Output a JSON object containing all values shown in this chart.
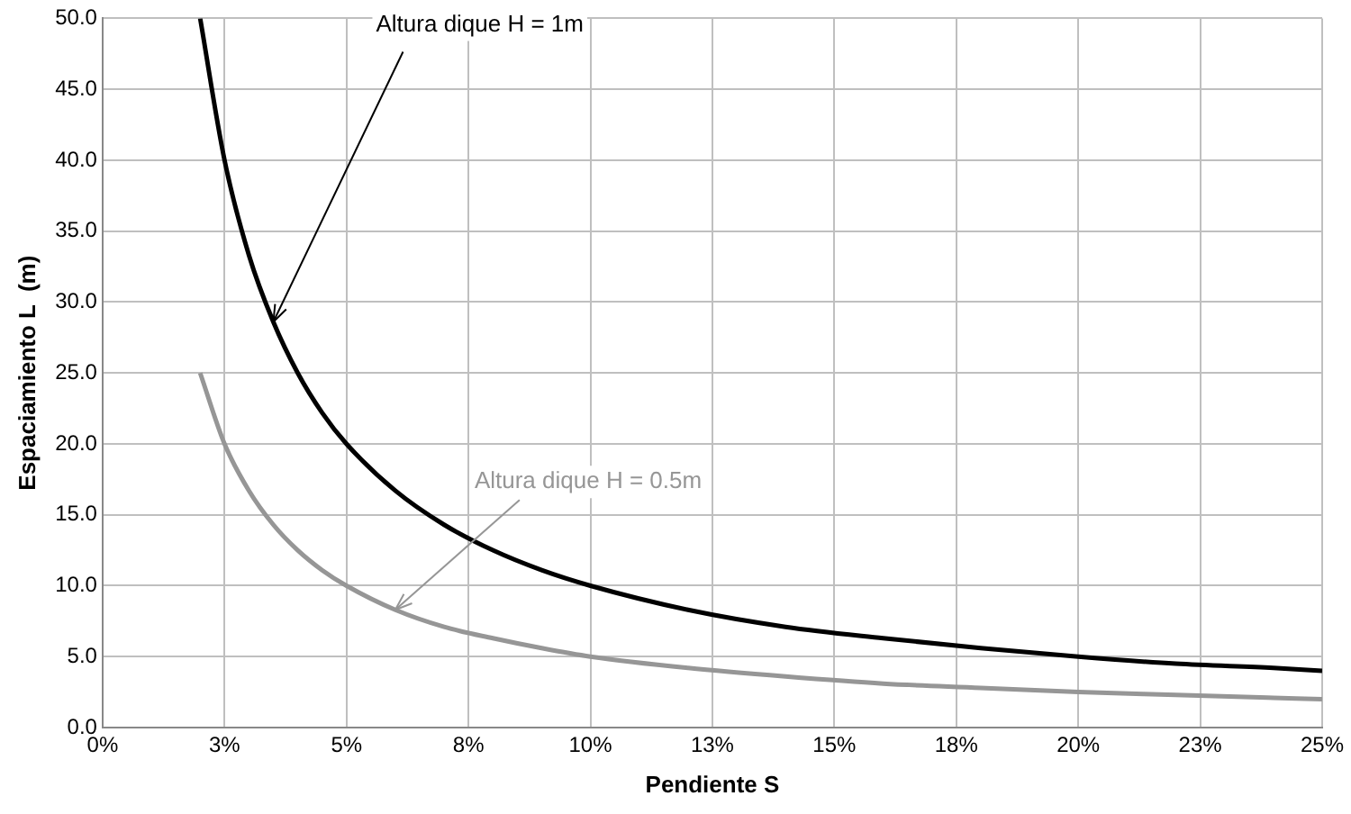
{
  "chart_data": {
    "type": "line",
    "xlabel": "Pendiente S",
    "ylabel": "Espaciamiento L  (m)",
    "xlim": [
      0,
      25
    ],
    "xticks": [
      {
        "value": 0,
        "label": "0%"
      },
      {
        "value": 2.5,
        "label": "3%"
      },
      {
        "value": 5,
        "label": "5%"
      },
      {
        "value": 7.5,
        "label": "8%"
      },
      {
        "value": 10,
        "label": "10%"
      },
      {
        "value": 12.5,
        "label": "13%"
      },
      {
        "value": 15,
        "label": "15%"
      },
      {
        "value": 17.5,
        "label": "18%"
      },
      {
        "value": 20,
        "label": "20%"
      },
      {
        "value": 22.5,
        "label": "23%"
      },
      {
        "value": 25,
        "label": "25%"
      }
    ],
    "ylim": [
      0,
      50
    ],
    "yticks": [
      {
        "value": 0,
        "label": "0.0"
      },
      {
        "value": 5,
        "label": "5.0"
      },
      {
        "value": 10,
        "label": "10.0"
      },
      {
        "value": 15,
        "label": "15.0"
      },
      {
        "value": 20,
        "label": "20.0"
      },
      {
        "value": 25,
        "label": "25.0"
      },
      {
        "value": 30,
        "label": "30.0"
      },
      {
        "value": 35,
        "label": "35.0"
      },
      {
        "value": 40,
        "label": "40.0"
      },
      {
        "value": 45,
        "label": "45.0"
      },
      {
        "value": 50,
        "label": "50.0"
      }
    ],
    "x": [
      2,
      2.5,
      3,
      3.5,
      4,
      4.5,
      5,
      6,
      7,
      8,
      9,
      10,
      12,
      14,
      16,
      18,
      20,
      22,
      24,
      25
    ],
    "series": [
      {
        "color": "#000000",
        "values": [
          50,
          40,
          33.3,
          28.6,
          25,
          22.2,
          20,
          16.7,
          14.3,
          12.5,
          11.1,
          10,
          8.3,
          7.1,
          6.3,
          5.6,
          5,
          4.5,
          4.2,
          4
        ]
      },
      {
        "color": "#969696",
        "values": [
          25,
          20,
          16.7,
          14.3,
          12.5,
          11.1,
          10,
          8.3,
          7.1,
          6.3,
          5.6,
          5,
          4.2,
          3.6,
          3.1,
          2.8,
          2.5,
          2.3,
          2.1,
          2
        ]
      }
    ],
    "annotations": [
      {
        "text": "Altura dique H = 1m",
        "x": 3.5,
        "y": 28.6
      },
      {
        "text": "Altura dique H = 0.5m",
        "x": 6,
        "y": 8.3
      }
    ],
    "grid": true,
    "legend": false,
    "marker": "none",
    "line_style": "solid"
  }
}
